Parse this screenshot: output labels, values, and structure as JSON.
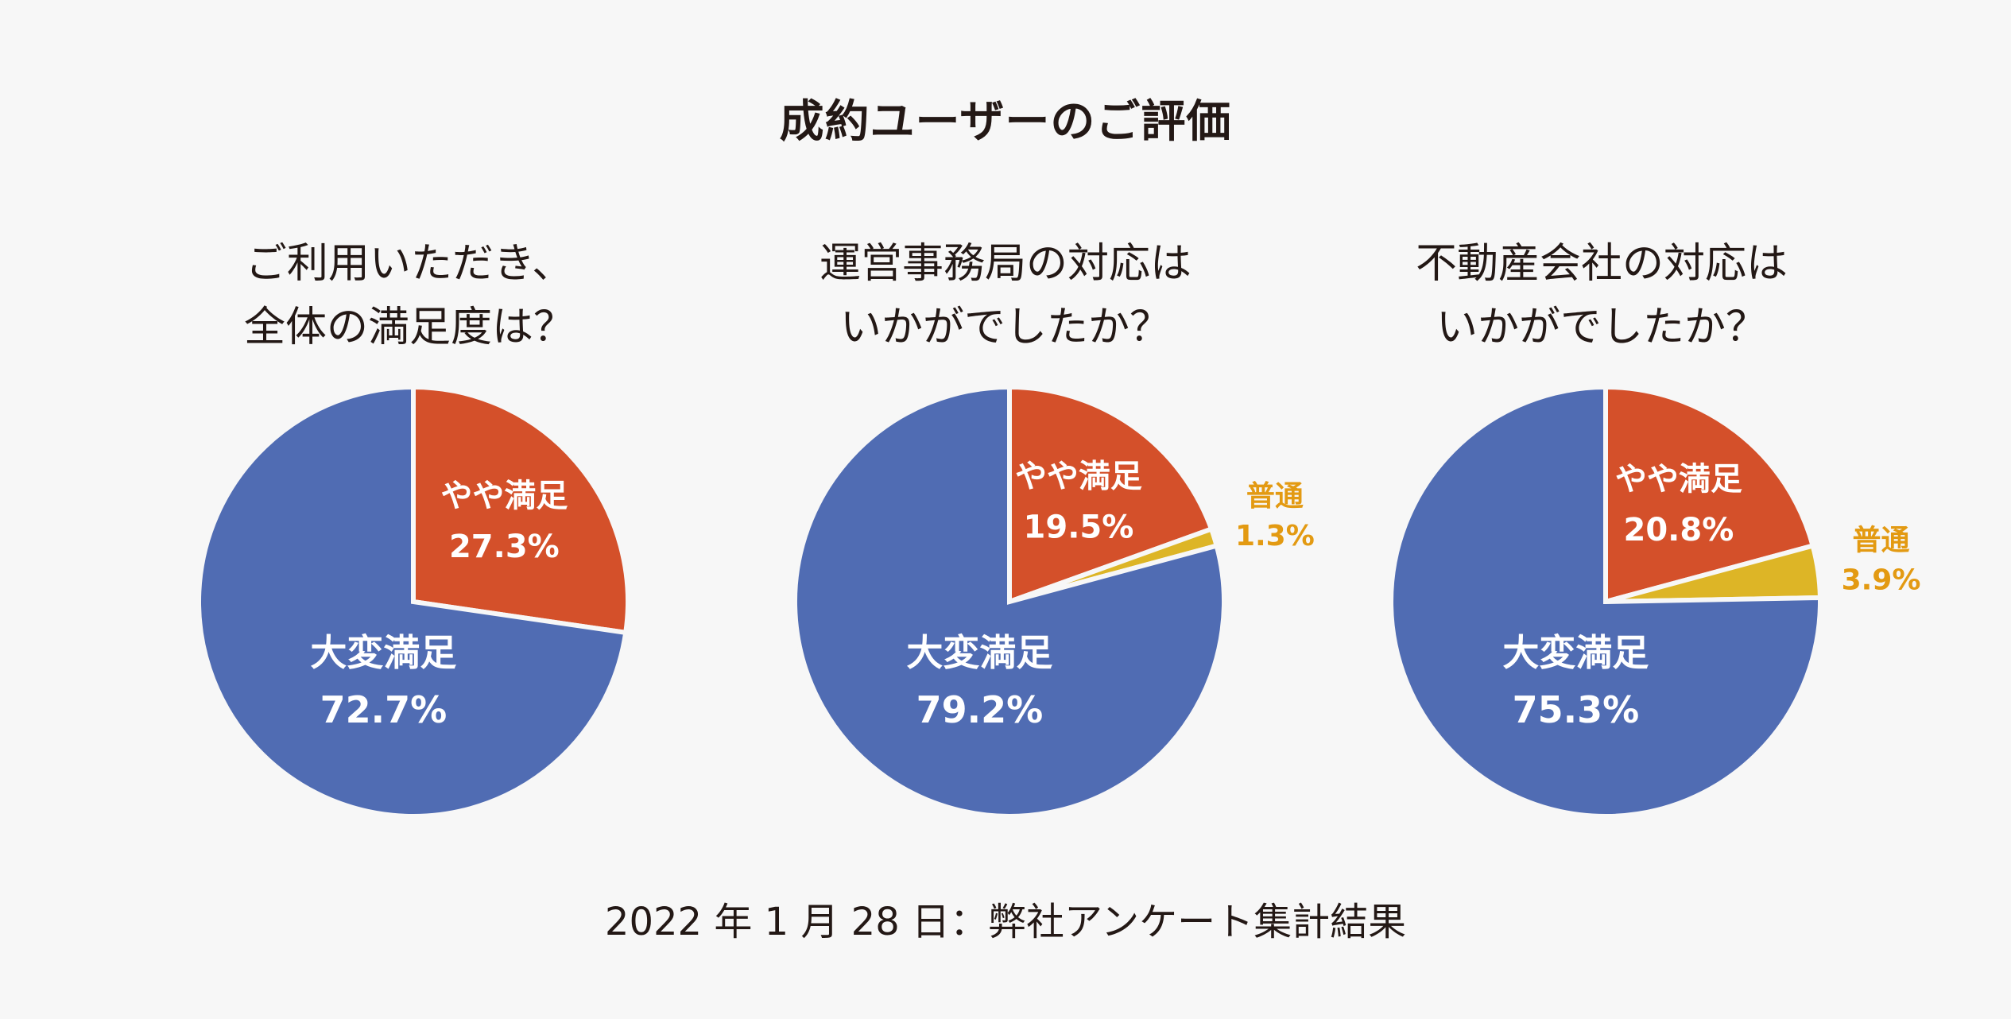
{
  "title": "成約ユーザーのご評価",
  "footer": "2022 年 1 月 28 日：弊社アンケート集計結果",
  "colors": {
    "very_satisfied": "#506cb3",
    "somewhat_satisfied": "#d4502a",
    "neutral": "#ddb526",
    "neutral_label": "#e39a12"
  },
  "chart_data": [
    {
      "type": "pie",
      "title_lines": [
        "ご利用いただき、",
        "全体の満足度は？"
      ],
      "slices": [
        {
          "label": "やや満足",
          "value": 27.3,
          "value_text": "27.3%",
          "color": "#d4502a",
          "label_inside": true
        },
        {
          "label": "大変満足",
          "value": 72.7,
          "value_text": "72.7%",
          "color": "#506cb3",
          "label_inside": true
        }
      ]
    },
    {
      "type": "pie",
      "title_lines": [
        "運営事務局の対応は",
        "いかがでしたか？"
      ],
      "slices": [
        {
          "label": "やや満足",
          "value": 19.5,
          "value_text": "19.5%",
          "color": "#d4502a",
          "label_inside": true
        },
        {
          "label": "普通",
          "value": 1.3,
          "value_text": "1.3%",
          "color": "#ddb526",
          "label_inside": false
        },
        {
          "label": "大変満足",
          "value": 79.2,
          "value_text": "79.2%",
          "color": "#506cb3",
          "label_inside": true
        }
      ]
    },
    {
      "type": "pie",
      "title_lines": [
        "不動産会社の対応は",
        "いかがでしたか？"
      ],
      "slices": [
        {
          "label": "やや満足",
          "value": 20.8,
          "value_text": "20.8%",
          "color": "#d4502a",
          "label_inside": true
        },
        {
          "label": "普通",
          "value": 3.9,
          "value_text": "3.9%",
          "color": "#ddb526",
          "label_inside": false
        },
        {
          "label": "大変満足",
          "value": 75.3,
          "value_text": "75.3%",
          "color": "#506cb3",
          "label_inside": true
        }
      ]
    }
  ]
}
